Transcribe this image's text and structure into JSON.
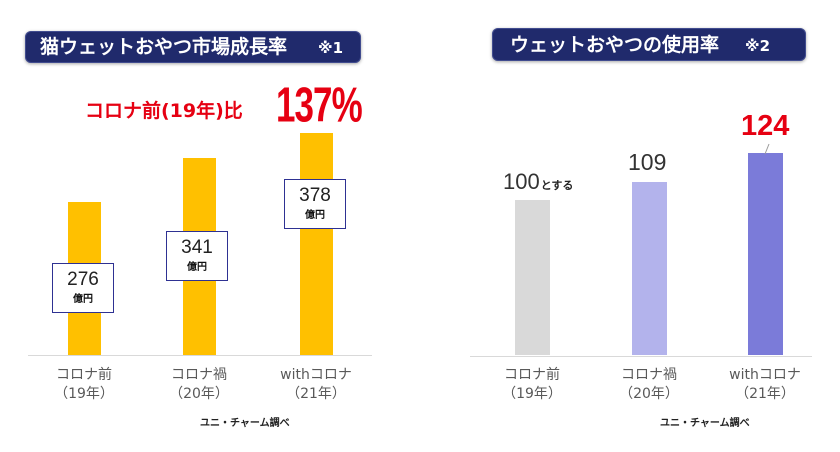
{
  "chart_data": [
    {
      "type": "bar",
      "title": "猫ウェットおやつ市場成長率",
      "title_note": "※1",
      "title_bar_color": "#202A6C",
      "annotation": {
        "text": "コロナ前(19年)比",
        "value": "137%",
        "color": "#E60012"
      },
      "categories": [
        "コロナ前",
        "コロナ禍",
        "withコロナ"
      ],
      "category_years": [
        "（19年）",
        "（20年）",
        "（21年）"
      ],
      "values": [
        276,
        341,
        378
      ],
      "value_unit": "億円",
      "bar_colors": [
        "#FFC000",
        "#FFC000",
        "#FFC000"
      ],
      "ylim": [
        50,
        400
      ],
      "grid": false,
      "legend": "none",
      "source": "ユニ・チャーム調べ"
    },
    {
      "type": "bar",
      "title": "ウェットおやつの使用率",
      "title_note": "※2",
      "title_bar_color": "#202A6C",
      "categories": [
        "コロナ前",
        "コロナ禍",
        "withコロナ"
      ],
      "category_years": [
        "（19年）",
        "（20年）",
        "（21年）"
      ],
      "values": [
        100,
        109,
        124
      ],
      "value_suffixes": [
        "とする",
        "",
        ""
      ],
      "value_label_colors": [
        "#333333",
        "#333333",
        "#E60012"
      ],
      "bar_colors": [
        "#D9D9D9",
        "#B3B3EC",
        "#7B7BD9"
      ],
      "ylim": [
        20,
        140
      ],
      "grid": false,
      "legend": "none",
      "source": "ユニ・チャーム調べ"
    }
  ]
}
